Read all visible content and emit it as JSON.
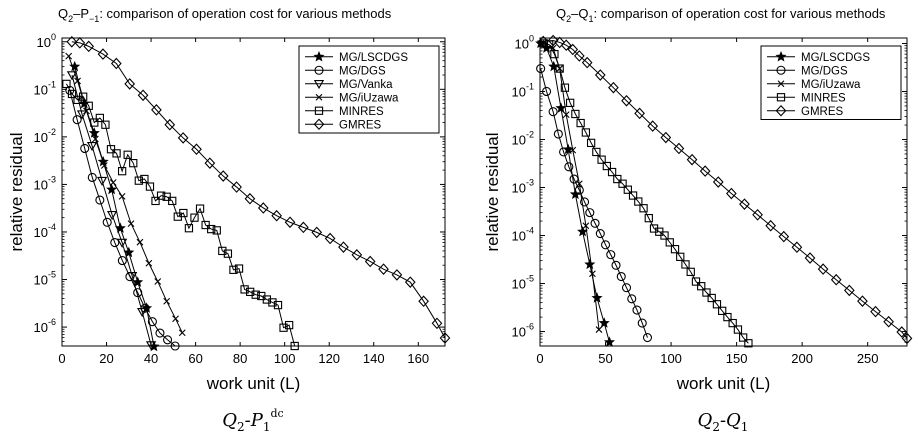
{
  "chart_data": [
    {
      "type": "line",
      "title": "Q₂–P₋₁: comparison of operation cost for various methods",
      "title_parts": {
        "base": "Q",
        "sub1": "2",
        "mid": "–P",
        "sub2": "−1",
        "rest": ": comparison of operation cost for various methods"
      },
      "caption": {
        "base": "Q",
        "sub1": "2",
        "mid": "-P",
        "sub2": "1",
        "sup2": "dc"
      },
      "xlabel": "work unit (L)",
      "ylabel": "relative residual",
      "xlim": [
        0,
        172
      ],
      "xticks": [
        0,
        20,
        40,
        60,
        80,
        100,
        120,
        140,
        160
      ],
      "xtick_labels": [
        "0",
        "20",
        "40",
        "60",
        "80",
        "100",
        "120",
        "140",
        "160"
      ],
      "yscale": "log",
      "ylim": [
        4e-07,
        1.2
      ],
      "yticks": [
        {
          "value": 1,
          "base": "10",
          "exp": "0"
        },
        {
          "value": 0.1,
          "base": "10",
          "exp": "-1"
        },
        {
          "value": 0.01,
          "base": "10",
          "exp": "-2"
        },
        {
          "value": 0.001,
          "base": "10",
          "exp": "-3"
        },
        {
          "value": 0.0001,
          "base": "10",
          "exp": "-4"
        },
        {
          "value": 1e-05,
          "base": "10",
          "exp": "-5"
        },
        {
          "value": 1e-06,
          "base": "10",
          "exp": "-6"
        }
      ],
      "grid": false,
      "legend_position": "top-right",
      "series": [
        {
          "name": "MG/LSCDGS",
          "marker": "star",
          "x": [
            5.7,
            10,
            14.5,
            18.5,
            22.3,
            26.2,
            30,
            34,
            38,
            41.3
          ],
          "y": [
            0.3,
            0.05,
            0.012,
            0.003,
            0.00078,
            0.00012,
            3.7e-05,
            8.8e-06,
            2.5e-06,
            3.9e-07
          ]
        },
        {
          "name": "MG/DGS",
          "marker": "circle",
          "x": [
            3.5,
            6.8,
            10.2,
            13.6,
            17,
            20.3,
            23.7,
            27.1,
            30.5,
            34,
            37.3,
            40.6,
            44,
            47.4,
            50.8
          ],
          "y": [
            0.095,
            0.023,
            0.0057,
            0.0014,
            0.00047,
            0.00016,
            6e-05,
            2.5e-05,
            1.15e-05,
            5.3e-06,
            2.5e-06,
            1.3e-06,
            7.5e-07,
            5.4e-07,
            4e-07
          ]
        },
        {
          "name": "MG/Vanka",
          "marker": "triangle",
          "x": [
            4.5,
            9,
            13.5,
            18,
            22.5,
            27,
            31.5,
            36,
            40
          ],
          "y": [
            0.2,
            0.03,
            0.0065,
            0.0012,
            0.00023,
            6e-05,
            1.2e-05,
            2.1e-06,
            4.2e-07
          ]
        },
        {
          "name": "MG/iUzawa",
          "marker": "x",
          "x": [
            3,
            7,
            11,
            15,
            19,
            23,
            27,
            31,
            35,
            39,
            43,
            47,
            51,
            54
          ],
          "y": [
            0.5,
            0.15,
            0.035,
            0.009,
            0.0025,
            0.0011,
            0.00056,
            0.00015,
            6.1e-05,
            2.2e-05,
            9.1e-06,
            3.5e-06,
            1.5e-06,
            7.6e-07
          ]
        },
        {
          "name": "MINRES",
          "marker": "square",
          "x": [
            2,
            4.5,
            7,
            9.5,
            12,
            14.5,
            17,
            19.5,
            22,
            24.5,
            27,
            29.5,
            32,
            34.5,
            37,
            39.5,
            42,
            44.5,
            47,
            49.5,
            52,
            54.5,
            57,
            59.5,
            62,
            64.5,
            67,
            69.5,
            72,
            74.5,
            77,
            79.5,
            82,
            84.5,
            87,
            89.5,
            92,
            94.5,
            97,
            99.5,
            102,
            104.5
          ],
          "y": [
            0.13,
            0.08,
            0.06,
            0.07,
            0.045,
            0.02,
            0.025,
            0.018,
            0.0055,
            0.0045,
            0.0019,
            0.0042,
            0.0028,
            0.0012,
            0.0013,
            0.0009,
            0.00045,
            0.00058,
            0.00055,
            0.00045,
            0.00021,
            0.00025,
            0.00012,
            0.0002,
            0.00031,
            0.00014,
            0.000115,
            0.000108,
            4e-05,
            3.5e-05,
            1.6e-05,
            1.7e-05,
            6.2e-06,
            5.5e-06,
            4.8e-06,
            4.5e-06,
            3.8e-06,
            3.3e-06,
            2.9e-06,
            9.7e-07,
            1.1e-06,
            4e-07
          ]
        },
        {
          "name": "GMRES",
          "marker": "diamond",
          "x": [
            4.4,
            8,
            12,
            18.4,
            24.4,
            30.4,
            36.4,
            42.4,
            48.4,
            54.4,
            60.4,
            66.4,
            72.4,
            78.4,
            84.4,
            90.4,
            96.4,
            102.4,
            108.4,
            114.4,
            120.4,
            126.4,
            132.4,
            138.4,
            144.4,
            150.4,
            156.4,
            162.4,
            168.4,
            172
          ],
          "y": [
            1,
            0.95,
            0.8,
            0.55,
            0.35,
            0.13,
            0.075,
            0.037,
            0.018,
            0.0095,
            0.0055,
            0.0028,
            0.0015,
            0.00088,
            0.0005,
            0.00032,
            0.00022,
            0.00016,
            0.000125,
            9.8e-05,
            7.3e-05,
            4.8e-05,
            3.3e-05,
            2.4e-05,
            1.65e-05,
            1.25e-05,
            8.8e-06,
            3.5e-06,
            1.2e-06,
            5.9e-07
          ]
        }
      ]
    },
    {
      "type": "line",
      "title": "Q₂–Q₁: comparison of operation cost for various methods",
      "title_parts": {
        "base": "Q",
        "sub1": "2",
        "mid": "–Q",
        "sub2": "1",
        "rest": ": comparison of operation cost for various methods"
      },
      "caption": {
        "base": "Q",
        "sub1": "2",
        "mid": "-Q",
        "sub2": "1",
        "sup2": ""
      },
      "xlabel": "work unit (L)",
      "ylabel": "relative residual",
      "xlim": [
        0,
        280
      ],
      "xticks": [
        0,
        50,
        100,
        150,
        200,
        250
      ],
      "xtick_labels": [
        "0",
        "50",
        "100",
        "150",
        "200",
        "250"
      ],
      "yscale": "log",
      "ylim": [
        5e-07,
        1.3
      ],
      "yticks": [
        {
          "value": 1,
          "base": "10",
          "exp": "0"
        },
        {
          "value": 0.1,
          "base": "10",
          "exp": "-1"
        },
        {
          "value": 0.01,
          "base": "10",
          "exp": "-2"
        },
        {
          "value": 0.001,
          "base": "10",
          "exp": "-3"
        },
        {
          "value": 0.0001,
          "base": "10",
          "exp": "-4"
        },
        {
          "value": 1e-05,
          "base": "10",
          "exp": "-5"
        },
        {
          "value": 1e-06,
          "base": "10",
          "exp": "-6"
        }
      ],
      "grid": false,
      "legend_position": "top-right",
      "series": [
        {
          "name": "MG/LSCDGS",
          "marker": "star",
          "x": [
            0.5,
            5,
            10.5,
            16,
            21.5,
            27,
            32.5,
            38,
            43.5,
            49,
            53
          ],
          "y": [
            1,
            0.8,
            0.33,
            0.045,
            0.0062,
            0.00072,
            0.00012,
            2.5e-05,
            5e-06,
            1.5e-06,
            6e-07
          ]
        },
        {
          "name": "MG/DGS",
          "marker": "circle",
          "x": [
            0.5,
            5,
            10,
            14,
            18,
            22,
            26,
            30,
            34,
            38,
            42,
            46,
            50,
            54,
            58,
            62,
            66,
            70,
            74,
            78,
            82
          ],
          "y": [
            0.3,
            0.1,
            0.038,
            0.013,
            0.0055,
            0.0027,
            0.0015,
            0.00088,
            0.0005,
            0.0003,
            0.00018,
            0.00011,
            6.4e-05,
            4e-05,
            2.4e-05,
            1.4e-05,
            8.2e-06,
            4.8e-06,
            2.8e-06,
            1.5e-06,
            7.5e-07
          ]
        },
        {
          "name": "MG/iUzawa",
          "marker": "x",
          "x": [
            0.5,
            10,
            15,
            20,
            25,
            30,
            35,
            40,
            45
          ],
          "y": [
            1,
            0.8,
            0.3,
            0.033,
            0.006,
            0.0012,
            0.00016,
            1.6e-05,
            1.1e-06
          ]
        },
        {
          "name": "MINRES",
          "marker": "square",
          "x": [
            3,
            7,
            11,
            15,
            19,
            23,
            27,
            31,
            35,
            39,
            43,
            47,
            51,
            55,
            59,
            63,
            67,
            71,
            75,
            79,
            83,
            87,
            91,
            95,
            99,
            103,
            107,
            111,
            115,
            119,
            123,
            127,
            131,
            135,
            139,
            143,
            147,
            151,
            155,
            159
          ],
          "y": [
            1,
            0.95,
            0.6,
            0.3,
            0.12,
            0.058,
            0.034,
            0.022,
            0.014,
            0.0085,
            0.0055,
            0.0038,
            0.0028,
            0.0021,
            0.0015,
            0.0012,
            0.0009,
            0.00068,
            0.00051,
            0.00037,
            0.00023,
            0.00014,
            0.00012,
            0.0001,
            7.2e-05,
            5.2e-05,
            3.6e-05,
            2.5e-05,
            1.75e-05,
            1.1e-05,
            8.8e-06,
            6.5e-06,
            5e-06,
            3.7e-06,
            2.7e-06,
            2e-06,
            1.5e-06,
            1.1e-06,
            7.5e-07,
            5.7e-07
          ]
        },
        {
          "name": "GMRES",
          "marker": "diamond",
          "x": [
            2.5,
            10,
            15,
            20,
            25,
            30,
            36,
            46,
            56,
            66,
            76,
            86,
            96,
            106,
            116,
            126,
            136,
            146,
            156,
            166,
            176,
            186,
            196,
            206,
            216,
            226,
            236,
            246,
            256,
            266,
            276,
            280
          ],
          "y": [
            1.1,
            1.15,
            1.05,
            0.92,
            0.75,
            0.55,
            0.4,
            0.22,
            0.12,
            0.064,
            0.035,
            0.019,
            0.011,
            0.0065,
            0.0038,
            0.0022,
            0.0013,
            0.00075,
            0.00045,
            0.00027,
            0.00016,
            9.5e-05,
            5.7e-05,
            3.4e-05,
            2e-05,
            1.2e-05,
            7.2e-06,
            4.3e-06,
            2.6e-06,
            1.6e-06,
            9.8e-07,
            7.2e-07
          ]
        }
      ]
    }
  ]
}
